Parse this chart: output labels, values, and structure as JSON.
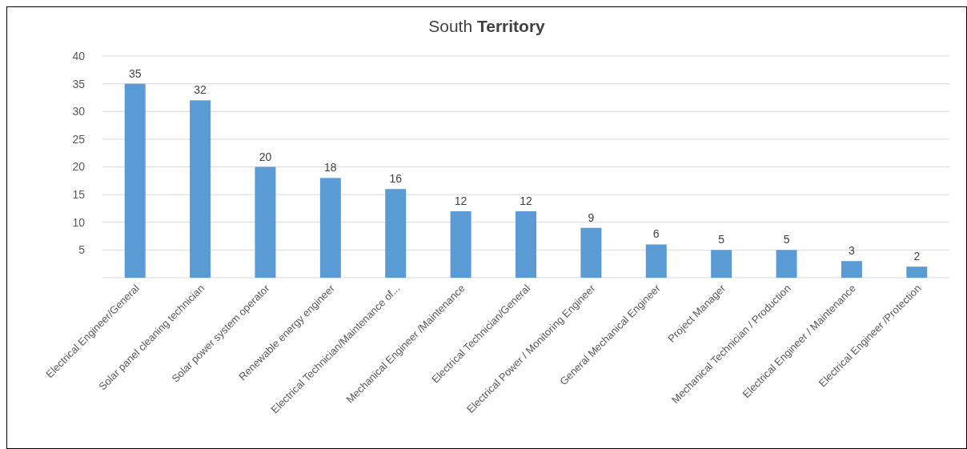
{
  "chart_data": {
    "type": "bar",
    "title": "South Territory",
    "categories": [
      "Electrical Engineer/General",
      "Solar panel cleaning technician",
      "Solar power system operator",
      "Renewable energy engineer",
      "Electrical Technician/Maintenance of...",
      "Mechanical Engineer /Maintenance",
      "Electrical Technician/General",
      "Electrical Power / Monitoring Engineer",
      "General Mechanical Engineer",
      "Project Manager",
      "Mechanical Technician / Production",
      "Electrical Engineer / Maintenance",
      "Electrical Engineer /Protection"
    ],
    "values": [
      35,
      32,
      20,
      18,
      16,
      12,
      12,
      9,
      6,
      5,
      5,
      3,
      2
    ],
    "color": "#5b9bd5",
    "ylim": [
      0,
      40
    ],
    "yticks": [
      5,
      10,
      15,
      20,
      25,
      30,
      35,
      40
    ],
    "grid": "y",
    "data_labels": true
  }
}
